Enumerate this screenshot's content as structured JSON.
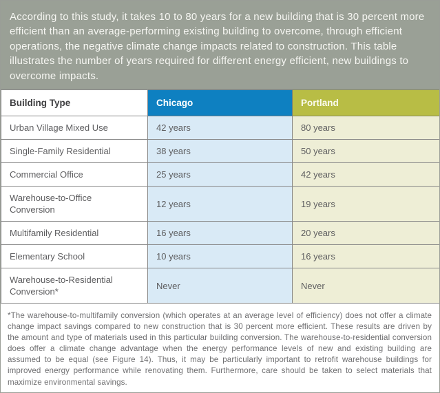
{
  "intro": {
    "text": "According to this study, it takes 10 to 80 years for a new building that is 30 percent more efficient than an average-performing existing building to overcome, through efficient operations, the negative climate change impacts related to construction. This table illustrates the number of years required for different energy efficient, new buildings to overcome impacts."
  },
  "table": {
    "columns": [
      "Building Type",
      "Chicago",
      "Portland"
    ],
    "rows": [
      {
        "building_type": "Urban Village Mixed Use",
        "chicago": "42 years",
        "portland": "80 years"
      },
      {
        "building_type": "Single-Family Residential",
        "chicago": "38 years",
        "portland": "50 years"
      },
      {
        "building_type": "Commercial Office",
        "chicago": "25 years",
        "portland": "42 years"
      },
      {
        "building_type": "Warehouse-to-Office Conversion",
        "chicago": "12 years",
        "portland": "19 years"
      },
      {
        "building_type": "Multifamily Residential",
        "chicago": "16 years",
        "portland": "20 years"
      },
      {
        "building_type": "Elementary School",
        "chicago": "10 years",
        "portland": "16 years"
      },
      {
        "building_type": "Warehouse-to-Residential Conversion*",
        "chicago": "Never",
        "portland": "Never"
      }
    ]
  },
  "footnote": {
    "text": "*The warehouse-to-multifamily conversion (which operates at an average level of efficiency) does not offer a climate change impact savings compared to new construction that is 30 percent more efficient. These results are driven by the amount and type of materials used in this particular building conversion. The warehouse-to-residential conversion does offer a climate change advantage when the energy performance levels of new and existing building are assumed to be equal (see Figure 14).  Thus, it may be particularly important to retrofit warehouse buildings for improved energy performance while renovating them.  Furthermore, care should be taken to select materials that maximize environmental savings."
  },
  "colors": {
    "intro_background": "#9aa096",
    "chicago_header": "#0e80c1",
    "chicago_cell": "#d9eaf6",
    "portland_header": "#b8bd45",
    "portland_cell": "#eeeed6",
    "border": "#878787",
    "body_text": "#5d5d5f"
  },
  "chart_data": {
    "type": "table",
    "title": "Years required for energy efficient new buildings to overcome climate change impacts of construction",
    "categories": [
      "Urban Village Mixed Use",
      "Single-Family Residential",
      "Commercial Office",
      "Warehouse-to-Office Conversion",
      "Multifamily Residential",
      "Elementary School",
      "Warehouse-to-Residential Conversion*"
    ],
    "series": [
      {
        "name": "Chicago",
        "values": [
          "42 years",
          "38 years",
          "25 years",
          "12 years",
          "16 years",
          "10 years",
          "Never"
        ],
        "numeric_years": [
          42,
          38,
          25,
          12,
          16,
          10,
          null
        ]
      },
      {
        "name": "Portland",
        "values": [
          "80 years",
          "50 years",
          "42 years",
          "19 years",
          "20 years",
          "16 years",
          "Never"
        ],
        "numeric_years": [
          80,
          50,
          42,
          19,
          20,
          16,
          null
        ]
      }
    ]
  }
}
